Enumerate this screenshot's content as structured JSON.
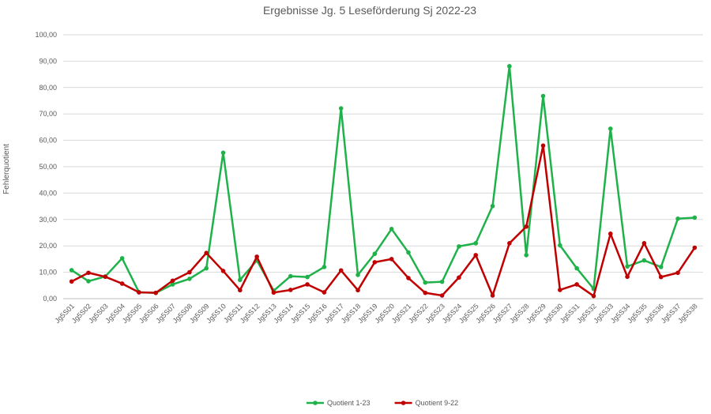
{
  "chart_data": {
    "type": "line",
    "title": "Ergebnisse Jg. 5 Leseförderung Sj 2022-23",
    "ylabel": "Fehlerquotient",
    "xlabel": "",
    "ylim": [
      0,
      100
    ],
    "y_ticks": [
      "0,00",
      "10,00",
      "20,00",
      "30,00",
      "40,00",
      "50,00",
      "60,00",
      "70,00",
      "80,00",
      "90,00",
      "100,00"
    ],
    "grid": "horizontal",
    "legend": "bottom",
    "categories": [
      "Jg5S01",
      "Jg5S02",
      "Jg5S03",
      "Jg5S04",
      "Jg5S05",
      "Jg5S06",
      "Jg5S07",
      "Jg5S08",
      "Jg5S09",
      "Jg5S10",
      "Jg5S11",
      "Jg5S12",
      "Jg5S13",
      "Jg5S14",
      "Jg5S15",
      "Jg5S16",
      "Jg5S17",
      "Jg5S18",
      "Jg5S19",
      "Jg5S20",
      "Jg5S21",
      "Jg5S22",
      "Jg5S23",
      "Jg5S24",
      "Jg5S25",
      "Jg5S26",
      "Jg5S27",
      "Jg5S28",
      "Jg5S29",
      "Jg5S30",
      "Jg5S31",
      "Jg5S32",
      "Jg5S33",
      "Jg5S34",
      "Jg5S35",
      "Jg5S36",
      "Jg5S37",
      "Jg5S38"
    ],
    "series": [
      {
        "name": "Quotient 1-23",
        "color": "#1fb24a",
        "values": [
          10.8,
          6.6,
          8.4,
          15.3,
          2.4,
          2.2,
          5.4,
          7.5,
          11.5,
          55.3,
          7.1,
          14.5,
          3.0,
          8.5,
          8.2,
          12.0,
          72.1,
          9.0,
          17.0,
          26.4,
          17.5,
          6.1,
          6.4,
          19.8,
          21.0,
          35.1,
          88.1,
          16.5,
          76.8,
          20.2,
          11.5,
          3.7,
          64.4,
          12.2,
          14.5,
          12.0,
          30.3,
          30.7
        ]
      },
      {
        "name": "Quotient 9-22",
        "color": "#c00000",
        "values": [
          6.5,
          9.8,
          8.3,
          5.7,
          2.4,
          2.2,
          6.8,
          10.0,
          17.3,
          10.5,
          3.2,
          15.9,
          2.3,
          3.3,
          5.4,
          2.4,
          10.7,
          3.2,
          13.8,
          15.0,
          7.8,
          2.2,
          1.2,
          8.0,
          16.5,
          1.2,
          21.0,
          27.3,
          58.0,
          3.3,
          5.4,
          1.0,
          24.6,
          8.3,
          21.0,
          8.2,
          9.8,
          19.3
        ]
      }
    ]
  }
}
